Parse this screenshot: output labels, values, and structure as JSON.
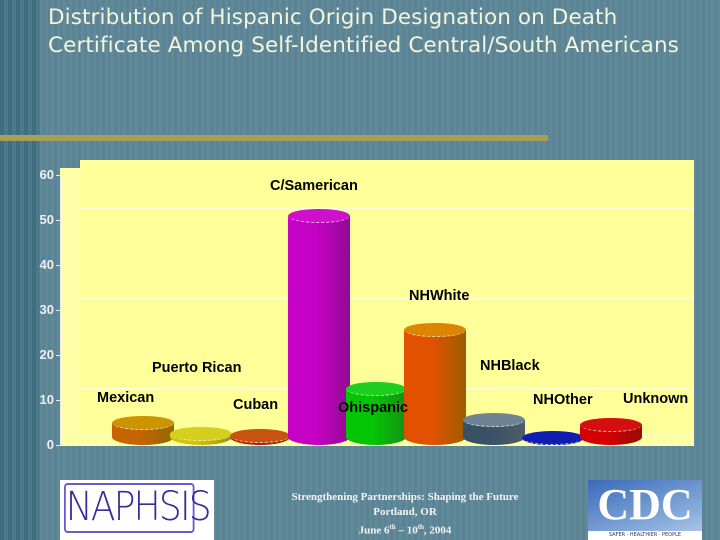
{
  "slide": {
    "title": "Distribution of Hispanic Origin Designation on Death Certificate Among Self-Identified Central/South Americans"
  },
  "chart_data": {
    "type": "bar",
    "title": "Distribution of Hispanic Origin Designation on Death Certificate Among Self-Identified Central/South Americans",
    "xlabel": "",
    "ylabel": "",
    "ylim": [
      0,
      60
    ],
    "yticks": [
      "0",
      "10",
      "20",
      "30",
      "40",
      "50",
      "60"
    ],
    "grid": true,
    "legend": "none",
    "style": "3d-cylinder",
    "categories": [
      "Mexican",
      "Puerto Rican",
      "Cuban",
      "C/Samerican",
      "Ohispanic",
      "NHWhite",
      "NHBlack",
      "NHOther",
      "Unknown"
    ],
    "values": [
      5,
      2.5,
      2,
      51,
      12.5,
      25.5,
      5.5,
      1.5,
      4.5
    ],
    "colors": [
      "#e0a000",
      "#e8e020",
      "#d85a10",
      "#e010e0",
      "#20e020",
      "#f09000",
      "#7890a0",
      "#1020c0",
      "#e81010"
    ]
  },
  "footer": {
    "line1": "Strengthening Partnerships: Shaping the Future",
    "line2": "Portland, OR",
    "line3_pre": "June 6",
    "line3_sup1": "th",
    "line3_mid": " – 10",
    "line3_sup2": "th",
    "line3_post": ", 2004"
  },
  "logos": {
    "left": "NAPHSIS",
    "right": "CDC",
    "right_tagline": "SAFER · HEALTHIER · PEOPLE"
  }
}
